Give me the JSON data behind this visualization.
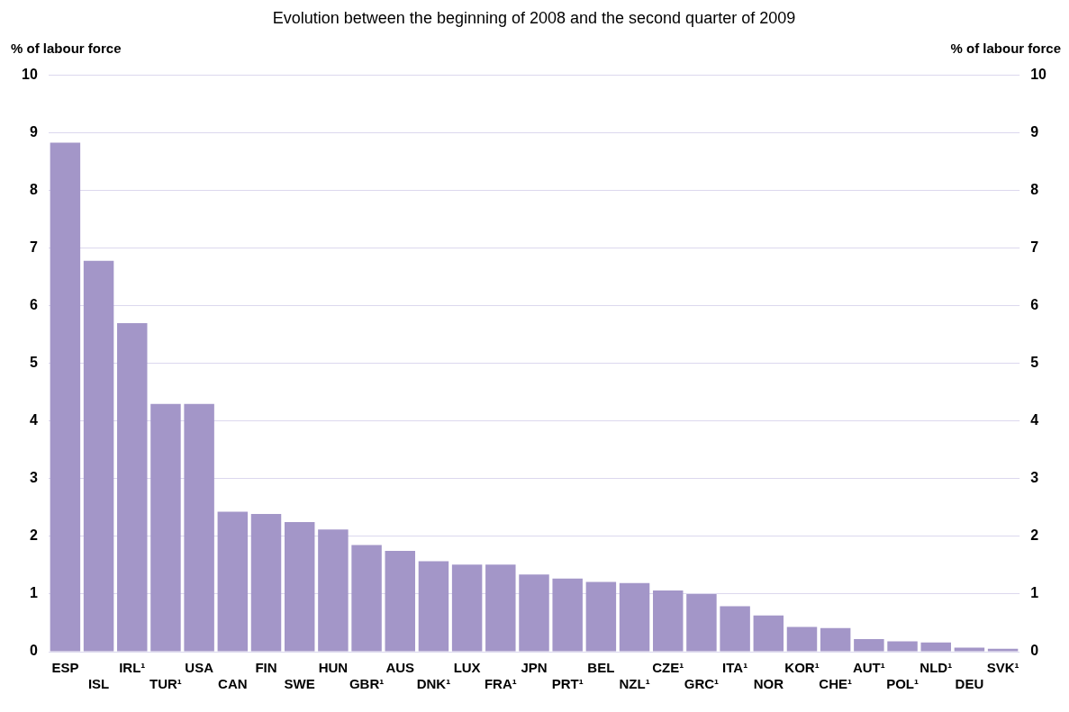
{
  "chart_data": {
    "type": "bar",
    "title": "Evolution between the beginning of 2008 and the second quarter of 2009",
    "ylabel": "% of labour force",
    "y2label": "% of labour force",
    "categories": [
      "ESP",
      "ISL",
      "IRL¹",
      "TUR¹",
      "USA",
      "CAN",
      "FIN",
      "SWE",
      "HUN",
      "GBR¹",
      "AUS",
      "DNK¹",
      "LUX",
      "FRA¹",
      "JPN",
      "PRT¹",
      "BEL",
      "NZL¹",
      "CZE¹",
      "GRC¹",
      "ITA¹",
      "NOR",
      "KOR¹",
      "CHE¹",
      "AUT¹",
      "POL¹",
      "NLD¹",
      "DEU",
      "SVK¹"
    ],
    "values": [
      8.83,
      6.78,
      5.7,
      4.3,
      4.3,
      2.43,
      2.39,
      2.25,
      2.12,
      1.85,
      1.75,
      1.57,
      1.51,
      1.51,
      1.34,
      1.27,
      1.21,
      1.19,
      1.06,
      1.0,
      0.79,
      0.63,
      0.43,
      0.41,
      0.22,
      0.18,
      0.16,
      0.07,
      0.05
    ],
    "color": "#a396c8",
    "ylim": [
      0,
      10
    ],
    "yticks": [
      0,
      1,
      2,
      3,
      4,
      5,
      6,
      7,
      8,
      9,
      10
    ],
    "y2lim": [
      0,
      10
    ],
    "y2ticks": [
      0,
      1,
      2,
      3,
      4,
      5,
      6,
      7,
      8,
      9,
      10
    ],
    "grid": "y"
  }
}
